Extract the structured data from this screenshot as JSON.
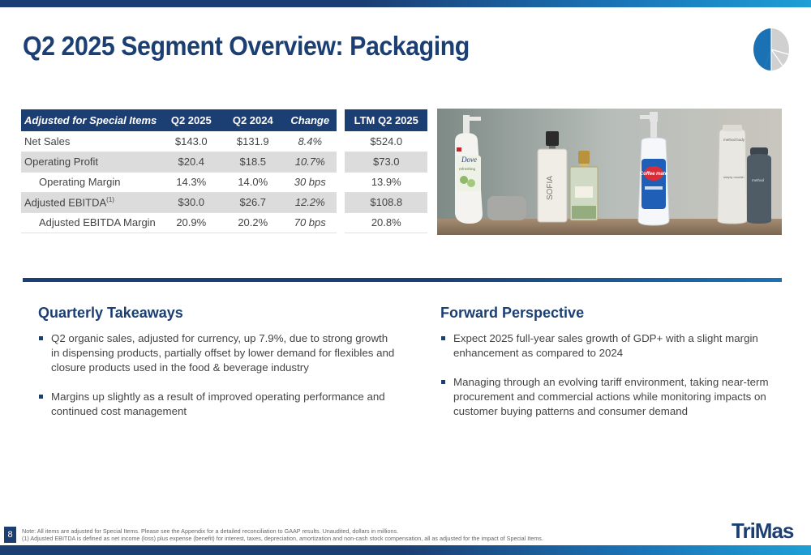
{
  "title": "Q2 2025 Segment Overview: Packaging",
  "colors": {
    "navy": "#1c3f73",
    "blue": "#1a72b5",
    "light_blue": "#1e9fd6",
    "shade": "#dcdcdc"
  },
  "pie_icon": {
    "name": "pie-chart-icon",
    "highlight_fraction": 0.4
  },
  "table": {
    "headers": {
      "label": "Adjusted for Special Items",
      "q2_2025": "Q2 2025",
      "q2_2024": "Q2 2024",
      "change": "Change",
      "ltm": "LTM Q2 2025"
    },
    "rows": [
      {
        "label": "Net Sales",
        "sup": "",
        "q2_2025": "$143.0",
        "q2_2024": "$131.9",
        "change": "8.4%",
        "ltm": "$524.0"
      },
      {
        "label": "Operating Profit",
        "sup": "",
        "q2_2025": "$20.4",
        "q2_2024": "$18.5",
        "change": "10.7%",
        "ltm": "$73.0"
      },
      {
        "label": "Operating Margin",
        "sup": "",
        "q2_2025": "14.3%",
        "q2_2024": "14.0%",
        "change": "30 bps",
        "ltm": "13.9%"
      },
      {
        "label": "Adjusted EBITDA",
        "sup": "(1)",
        "q2_2025": "$30.0",
        "q2_2024": "$26.7",
        "change": "12.2%",
        "ltm": "$108.8"
      },
      {
        "label": "Adjusted EBITDA Margin",
        "sup": "",
        "q2_2025": "20.9%",
        "q2_2024": "20.2%",
        "change": "70 bps",
        "ltm": "20.8%"
      }
    ]
  },
  "photo": {
    "labels": {
      "dove": "Dove",
      "refreshing": "refreshing",
      "sofia": "SOFIA",
      "coffee_mate": "Coffee mate",
      "method": "method",
      "method_body": "method body",
      "simply_nourish": "simply nourish"
    }
  },
  "takeaways": {
    "title": "Quarterly Takeaways",
    "bullets": [
      "Q2 organic sales, adjusted for currency, up 7.9%, due to strong growth in dispensing products, partially offset by lower demand for flexibles and closure products used in the food & beverage industry",
      "Margins up slightly as a result of improved operating performance and continued cost management"
    ]
  },
  "perspective": {
    "title": "Forward Perspective",
    "bullets": [
      "Expect 2025 full-year sales growth of GDP+ with a slight margin enhancement as compared to 2024",
      "Managing through an evolving tariff environment, taking near-term procurement and commercial actions while monitoring impacts on customer buying patterns and consumer demand"
    ]
  },
  "footer": {
    "page_number": "8",
    "note": "Note: All items are adjusted for Special Items. Please see the Appendix for a detailed reconciliation to GAAP results. Unaudited, dollars in millions.",
    "footnote_1": "(1)   Adjusted EBITDA is defined as net income (loss) plus expense (benefit) for interest, taxes, depreciation, amortization and non-cash stock compensation, all as adjusted for the impact of Special Items.",
    "logo_text": "TriMas"
  }
}
